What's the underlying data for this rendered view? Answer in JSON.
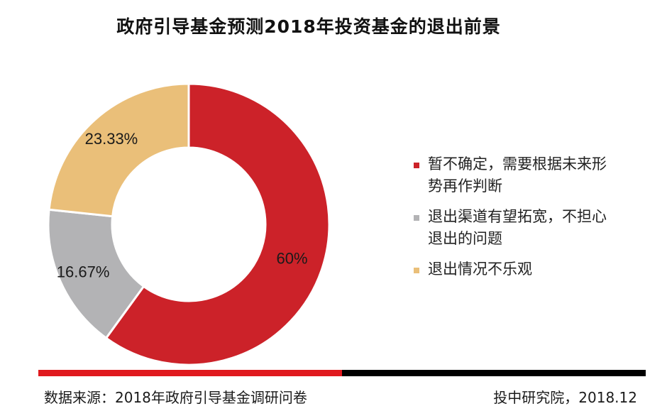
{
  "chart_data": {
    "type": "pie",
    "variant": "donut",
    "title": "政府引导基金预测2018年投资基金的退出前景",
    "categories": [
      "暂不确定，需要根据未来形势再作判断",
      "退出渠道有望拓宽，不担心退出的问题",
      "退出情况不乐观"
    ],
    "values": [
      60,
      16.67,
      23.33
    ],
    "labels": [
      "60%",
      "16.67%",
      "23.33%"
    ],
    "colors": [
      "#cc2229",
      "#b3b3b5",
      "#eabf79"
    ],
    "legend_position": "right"
  },
  "legend": [
    {
      "line1": "暂不确定，需要根据未来形",
      "line2": "势再作判断",
      "color": "#cc2229"
    },
    {
      "line1": "退出渠道有望拓宽，不担心",
      "line2": "退出的问题",
      "color": "#b3b3b5"
    },
    {
      "line1": "退出情况不乐观",
      "line2": "",
      "color": "#eabf79"
    }
  ],
  "footer": {
    "source": "数据来源：2018年政府引导基金调研问卷",
    "credit": "投中研究院，2018.12",
    "rule_colors": [
      "#e0191e",
      "#000000"
    ]
  }
}
